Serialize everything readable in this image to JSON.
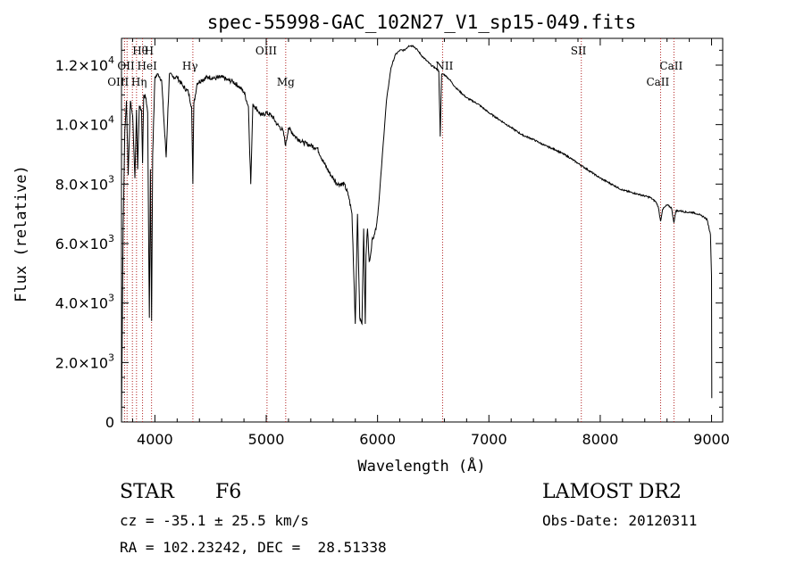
{
  "chart_data": {
    "type": "line",
    "title": "spec-55998-GAC_102N27_V1_sp15-049.fits",
    "xlabel": "Wavelength (Å)",
    "ylabel": "Flux (relative)",
    "xlim": [
      3700,
      9100
    ],
    "ylim": [
      0,
      12900
    ],
    "x_ticks": [
      {
        "value": 4000,
        "label": "4000"
      },
      {
        "value": 5000,
        "label": "5000"
      },
      {
        "value": 6000,
        "label": "6000"
      },
      {
        "value": 7000,
        "label": "7000"
      },
      {
        "value": 8000,
        "label": "8000"
      },
      {
        "value": 9000,
        "label": "9000"
      }
    ],
    "y_ticks": [
      {
        "value": 0,
        "mantissa": "0",
        "exp": ""
      },
      {
        "value": 2000,
        "mantissa": "2.0×10",
        "exp": "3"
      },
      {
        "value": 4000,
        "mantissa": "4.0×10",
        "exp": "3"
      },
      {
        "value": 6000,
        "mantissa": "6.0×10",
        "exp": "3"
      },
      {
        "value": 8000,
        "mantissa": "8.0×10",
        "exp": "3"
      },
      {
        "value": 10000,
        "mantissa": "1.0×10",
        "exp": "4"
      },
      {
        "value": 12000,
        "mantissa": "1.2×10",
        "exp": "4"
      }
    ],
    "line_markers": [
      {
        "label": "Hθ",
        "wavelength": 3798
      },
      {
        "label": "H",
        "wavelength": 3970
      },
      {
        "label": "OII",
        "wavelength": 3727
      },
      {
        "label": "HeI",
        "wavelength": 3889
      },
      {
        "label": "OIII",
        "wavelength": 3750
      },
      {
        "label": "Hη",
        "wavelength": 3835
      },
      {
        "label": "Hγ",
        "wavelength": 4341
      },
      {
        "label": "OIII",
        "wavelength": 5007
      },
      {
        "label": "Mg",
        "wavelength": 5175
      },
      {
        "label": "NII",
        "wavelength": 6584
      },
      {
        "label": "SII",
        "wavelength": 7830
      },
      {
        "label": "CaII",
        "wavelength": 8542
      },
      {
        "label": "CaII",
        "wavelength": 8662
      }
    ],
    "series": [
      {
        "x": [
          3700,
          3715,
          3730,
          3745,
          3760,
          3780,
          3800,
          3820,
          3835,
          3845,
          3860,
          3880,
          3889,
          3900,
          3920,
          3935,
          3950,
          3960,
          3970,
          3980,
          4000,
          4030,
          4060,
          4101,
          4130,
          4160,
          4200,
          4250,
          4300,
          4330,
          4341,
          4350,
          4380,
          4420,
          4480,
          4540,
          4600,
          4650,
          4700,
          4750,
          4800,
          4840,
          4861,
          4880,
          4920,
          4960,
          5000,
          5050,
          5100,
          5150,
          5175,
          5200,
          5260,
          5330,
          5400,
          5460,
          5520,
          5580,
          5640,
          5700,
          5740,
          5770,
          5800,
          5820,
          5840,
          5860,
          5875,
          5890,
          5896,
          5910,
          5925,
          5940,
          5955,
          5970,
          5990,
          6010,
          6040,
          6080,
          6120,
          6160,
          6200,
          6240,
          6280,
          6320,
          6360,
          6400,
          6440,
          6480,
          6520,
          6550,
          6563,
          6575,
          6590,
          6610,
          6650,
          6700,
          6800,
          6900,
          7000,
          7100,
          7200,
          7300,
          7400,
          7500,
          7600,
          7700,
          7800,
          7900,
          8000,
          8100,
          8200,
          8300,
          8400,
          8450,
          8500,
          8520,
          8542,
          8560,
          8600,
          8640,
          8662,
          8680,
          8720,
          8780,
          8830,
          8870,
          8900,
          8930,
          8960,
          8990,
          9000,
          9002
        ],
        "y": [
          0,
          6600,
          9800,
          10800,
          8300,
          10800,
          10300,
          8200,
          10500,
          8500,
          10600,
          10500,
          8700,
          11000,
          10900,
          10400,
          3500,
          8500,
          3400,
          9000,
          11600,
          11700,
          11500,
          8900,
          11700,
          11600,
          11600,
          11300,
          11100,
          10600,
          8000,
          10700,
          11400,
          11500,
          11600,
          11550,
          11600,
          11500,
          11450,
          11300,
          11100,
          10600,
          8000,
          10700,
          10500,
          10300,
          10400,
          10300,
          10000,
          9800,
          9300,
          9900,
          9600,
          9400,
          9300,
          9200,
          8700,
          8300,
          8000,
          8000,
          7600,
          7000,
          3300,
          7000,
          3500,
          3300,
          6500,
          3300,
          5600,
          6500,
          5400,
          5700,
          6200,
          6300,
          6600,
          7300,
          8800,
          10800,
          11900,
          12350,
          12500,
          12500,
          12650,
          12650,
          12500,
          12300,
          12150,
          12000,
          11900,
          11800,
          9600,
          11700,
          11700,
          11650,
          11500,
          11250,
          10900,
          10700,
          10400,
          10150,
          9900,
          9650,
          9500,
          9300,
          9150,
          8950,
          8700,
          8450,
          8200,
          8000,
          7800,
          7700,
          7600,
          7550,
          7400,
          7250,
          6750,
          7150,
          7300,
          7200,
          6700,
          7100,
          7100,
          7050,
          7050,
          7000,
          6950,
          6900,
          6800,
          6300,
          4900,
          800
        ]
      }
    ]
  },
  "info": {
    "class_label": "STAR",
    "subclass": "F6",
    "survey": "LAMOST DR2",
    "redshift": "cz = -35.1 ± 25.5 km/s",
    "obs_date": "Obs-Date: 20120311",
    "coords": "RA = 102.23242, DEC =  28.51338"
  }
}
